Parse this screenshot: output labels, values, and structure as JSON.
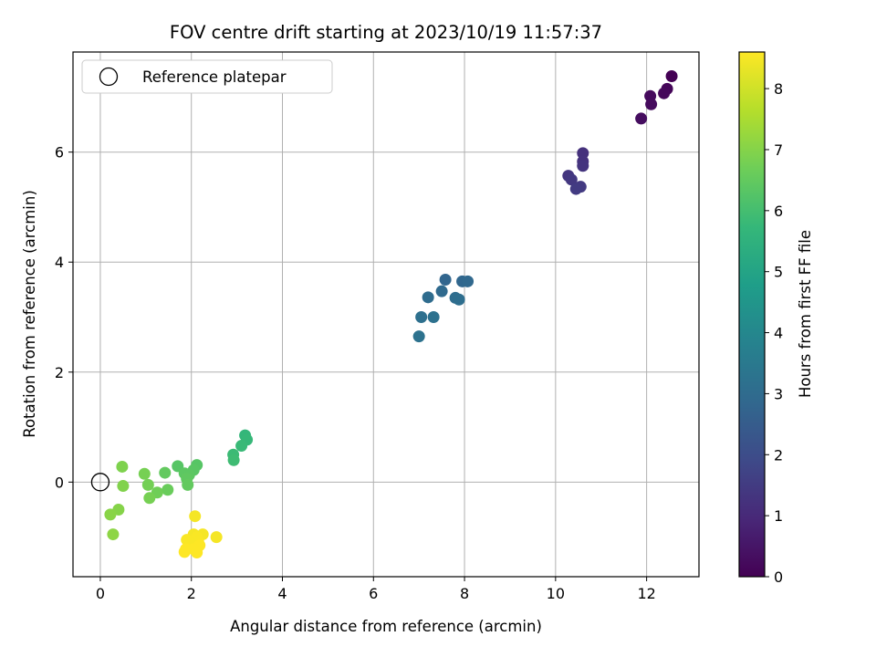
{
  "chart_data": {
    "type": "scatter",
    "title": "FOV centre drift starting at 2023/10/19 11:57:37",
    "xlabel": "Angular distance from reference (arcmin)",
    "ylabel": "Rotation from reference (arcmin)",
    "xlim": [
      -0.6,
      13.15
    ],
    "ylim": [
      -1.72,
      7.82
    ],
    "xticks": [
      0,
      2,
      4,
      6,
      8,
      10,
      12
    ],
    "yticks": [
      0,
      2,
      4,
      6
    ],
    "grid": true,
    "colorbar": {
      "label": "Hours from first FF file",
      "range": [
        0,
        8.6
      ],
      "ticks": [
        0,
        1,
        2,
        3,
        4,
        5,
        6,
        7,
        8
      ],
      "colormap": "viridis"
    },
    "legend": {
      "position": "top-left",
      "entries": [
        {
          "label": "Reference platepar",
          "marker": "open-circle"
        }
      ]
    },
    "reference": {
      "x": 0,
      "y": 0
    },
    "points": [
      {
        "x": 12.55,
        "y": 7.38,
        "c": 0.0
      },
      {
        "x": 12.45,
        "y": 7.15,
        "c": 0.1
      },
      {
        "x": 12.38,
        "y": 7.07,
        "c": 0.15
      },
      {
        "x": 12.08,
        "y": 7.02,
        "c": 0.2
      },
      {
        "x": 12.1,
        "y": 6.87,
        "c": 0.25
      },
      {
        "x": 11.88,
        "y": 6.61,
        "c": 0.3
      },
      {
        "x": 10.6,
        "y": 5.98,
        "c": 1.2
      },
      {
        "x": 10.6,
        "y": 5.83,
        "c": 1.25
      },
      {
        "x": 10.6,
        "y": 5.75,
        "c": 1.3
      },
      {
        "x": 10.28,
        "y": 5.57,
        "c": 1.35
      },
      {
        "x": 10.35,
        "y": 5.5,
        "c": 1.4
      },
      {
        "x": 10.55,
        "y": 5.37,
        "c": 1.45
      },
      {
        "x": 10.45,
        "y": 5.33,
        "c": 1.5
      },
      {
        "x": 7.58,
        "y": 3.68,
        "c": 2.8
      },
      {
        "x": 7.95,
        "y": 3.65,
        "c": 2.85
      },
      {
        "x": 8.07,
        "y": 3.65,
        "c": 2.9
      },
      {
        "x": 7.5,
        "y": 3.47,
        "c": 2.95
      },
      {
        "x": 7.2,
        "y": 3.36,
        "c": 3.0
      },
      {
        "x": 7.8,
        "y": 3.35,
        "c": 3.05
      },
      {
        "x": 7.88,
        "y": 3.32,
        "c": 3.1
      },
      {
        "x": 7.05,
        "y": 3.0,
        "c": 3.15
      },
      {
        "x": 7.32,
        "y": 3.0,
        "c": 3.2
      },
      {
        "x": 7.0,
        "y": 2.65,
        "c": 3.25
      },
      {
        "x": 3.18,
        "y": 0.85,
        "c": 5.7
      },
      {
        "x": 3.22,
        "y": 0.77,
        "c": 5.75
      },
      {
        "x": 3.1,
        "y": 0.66,
        "c": 5.8
      },
      {
        "x": 2.92,
        "y": 0.5,
        "c": 5.85
      },
      {
        "x": 2.93,
        "y": 0.4,
        "c": 5.9
      },
      {
        "x": 1.7,
        "y": 0.29,
        "c": 6.3
      },
      {
        "x": 2.12,
        "y": 0.31,
        "c": 6.3
      },
      {
        "x": 2.05,
        "y": 0.22,
        "c": 6.35
      },
      {
        "x": 1.85,
        "y": 0.16,
        "c": 6.4
      },
      {
        "x": 1.95,
        "y": 0.13,
        "c": 6.4
      },
      {
        "x": 1.42,
        "y": 0.17,
        "c": 6.5
      },
      {
        "x": 1.9,
        "y": 0.06,
        "c": 6.45
      },
      {
        "x": 1.92,
        "y": -0.05,
        "c": 6.5
      },
      {
        "x": 1.48,
        "y": -0.14,
        "c": 6.6
      },
      {
        "x": 1.25,
        "y": -0.19,
        "c": 6.7
      },
      {
        "x": 1.05,
        "y": -0.05,
        "c": 6.75
      },
      {
        "x": 0.97,
        "y": 0.15,
        "c": 6.8
      },
      {
        "x": 1.08,
        "y": -0.29,
        "c": 6.8
      },
      {
        "x": 0.48,
        "y": 0.28,
        "c": 6.9
      },
      {
        "x": 0.5,
        "y": -0.07,
        "c": 6.95
      },
      {
        "x": 0.4,
        "y": -0.5,
        "c": 7.0
      },
      {
        "x": 0.22,
        "y": -0.59,
        "c": 7.05
      },
      {
        "x": 0.28,
        "y": -0.95,
        "c": 7.1
      },
      {
        "x": 2.08,
        "y": -0.62,
        "c": 8.5
      },
      {
        "x": 2.05,
        "y": -0.95,
        "c": 8.5
      },
      {
        "x": 2.25,
        "y": -0.95,
        "c": 8.5
      },
      {
        "x": 2.55,
        "y": -1.0,
        "c": 8.5
      },
      {
        "x": 2.12,
        "y": -1.0,
        "c": 8.55
      },
      {
        "x": 1.9,
        "y": -1.05,
        "c": 8.55
      },
      {
        "x": 2.15,
        "y": -1.08,
        "c": 8.55
      },
      {
        "x": 1.98,
        "y": -1.12,
        "c": 8.55
      },
      {
        "x": 2.18,
        "y": -1.15,
        "c": 8.6
      },
      {
        "x": 1.88,
        "y": -1.22,
        "c": 8.6
      },
      {
        "x": 2.05,
        "y": -1.22,
        "c": 8.6
      },
      {
        "x": 2.12,
        "y": -1.28,
        "c": 8.6
      },
      {
        "x": 1.85,
        "y": -1.27,
        "c": 8.6
      }
    ]
  }
}
